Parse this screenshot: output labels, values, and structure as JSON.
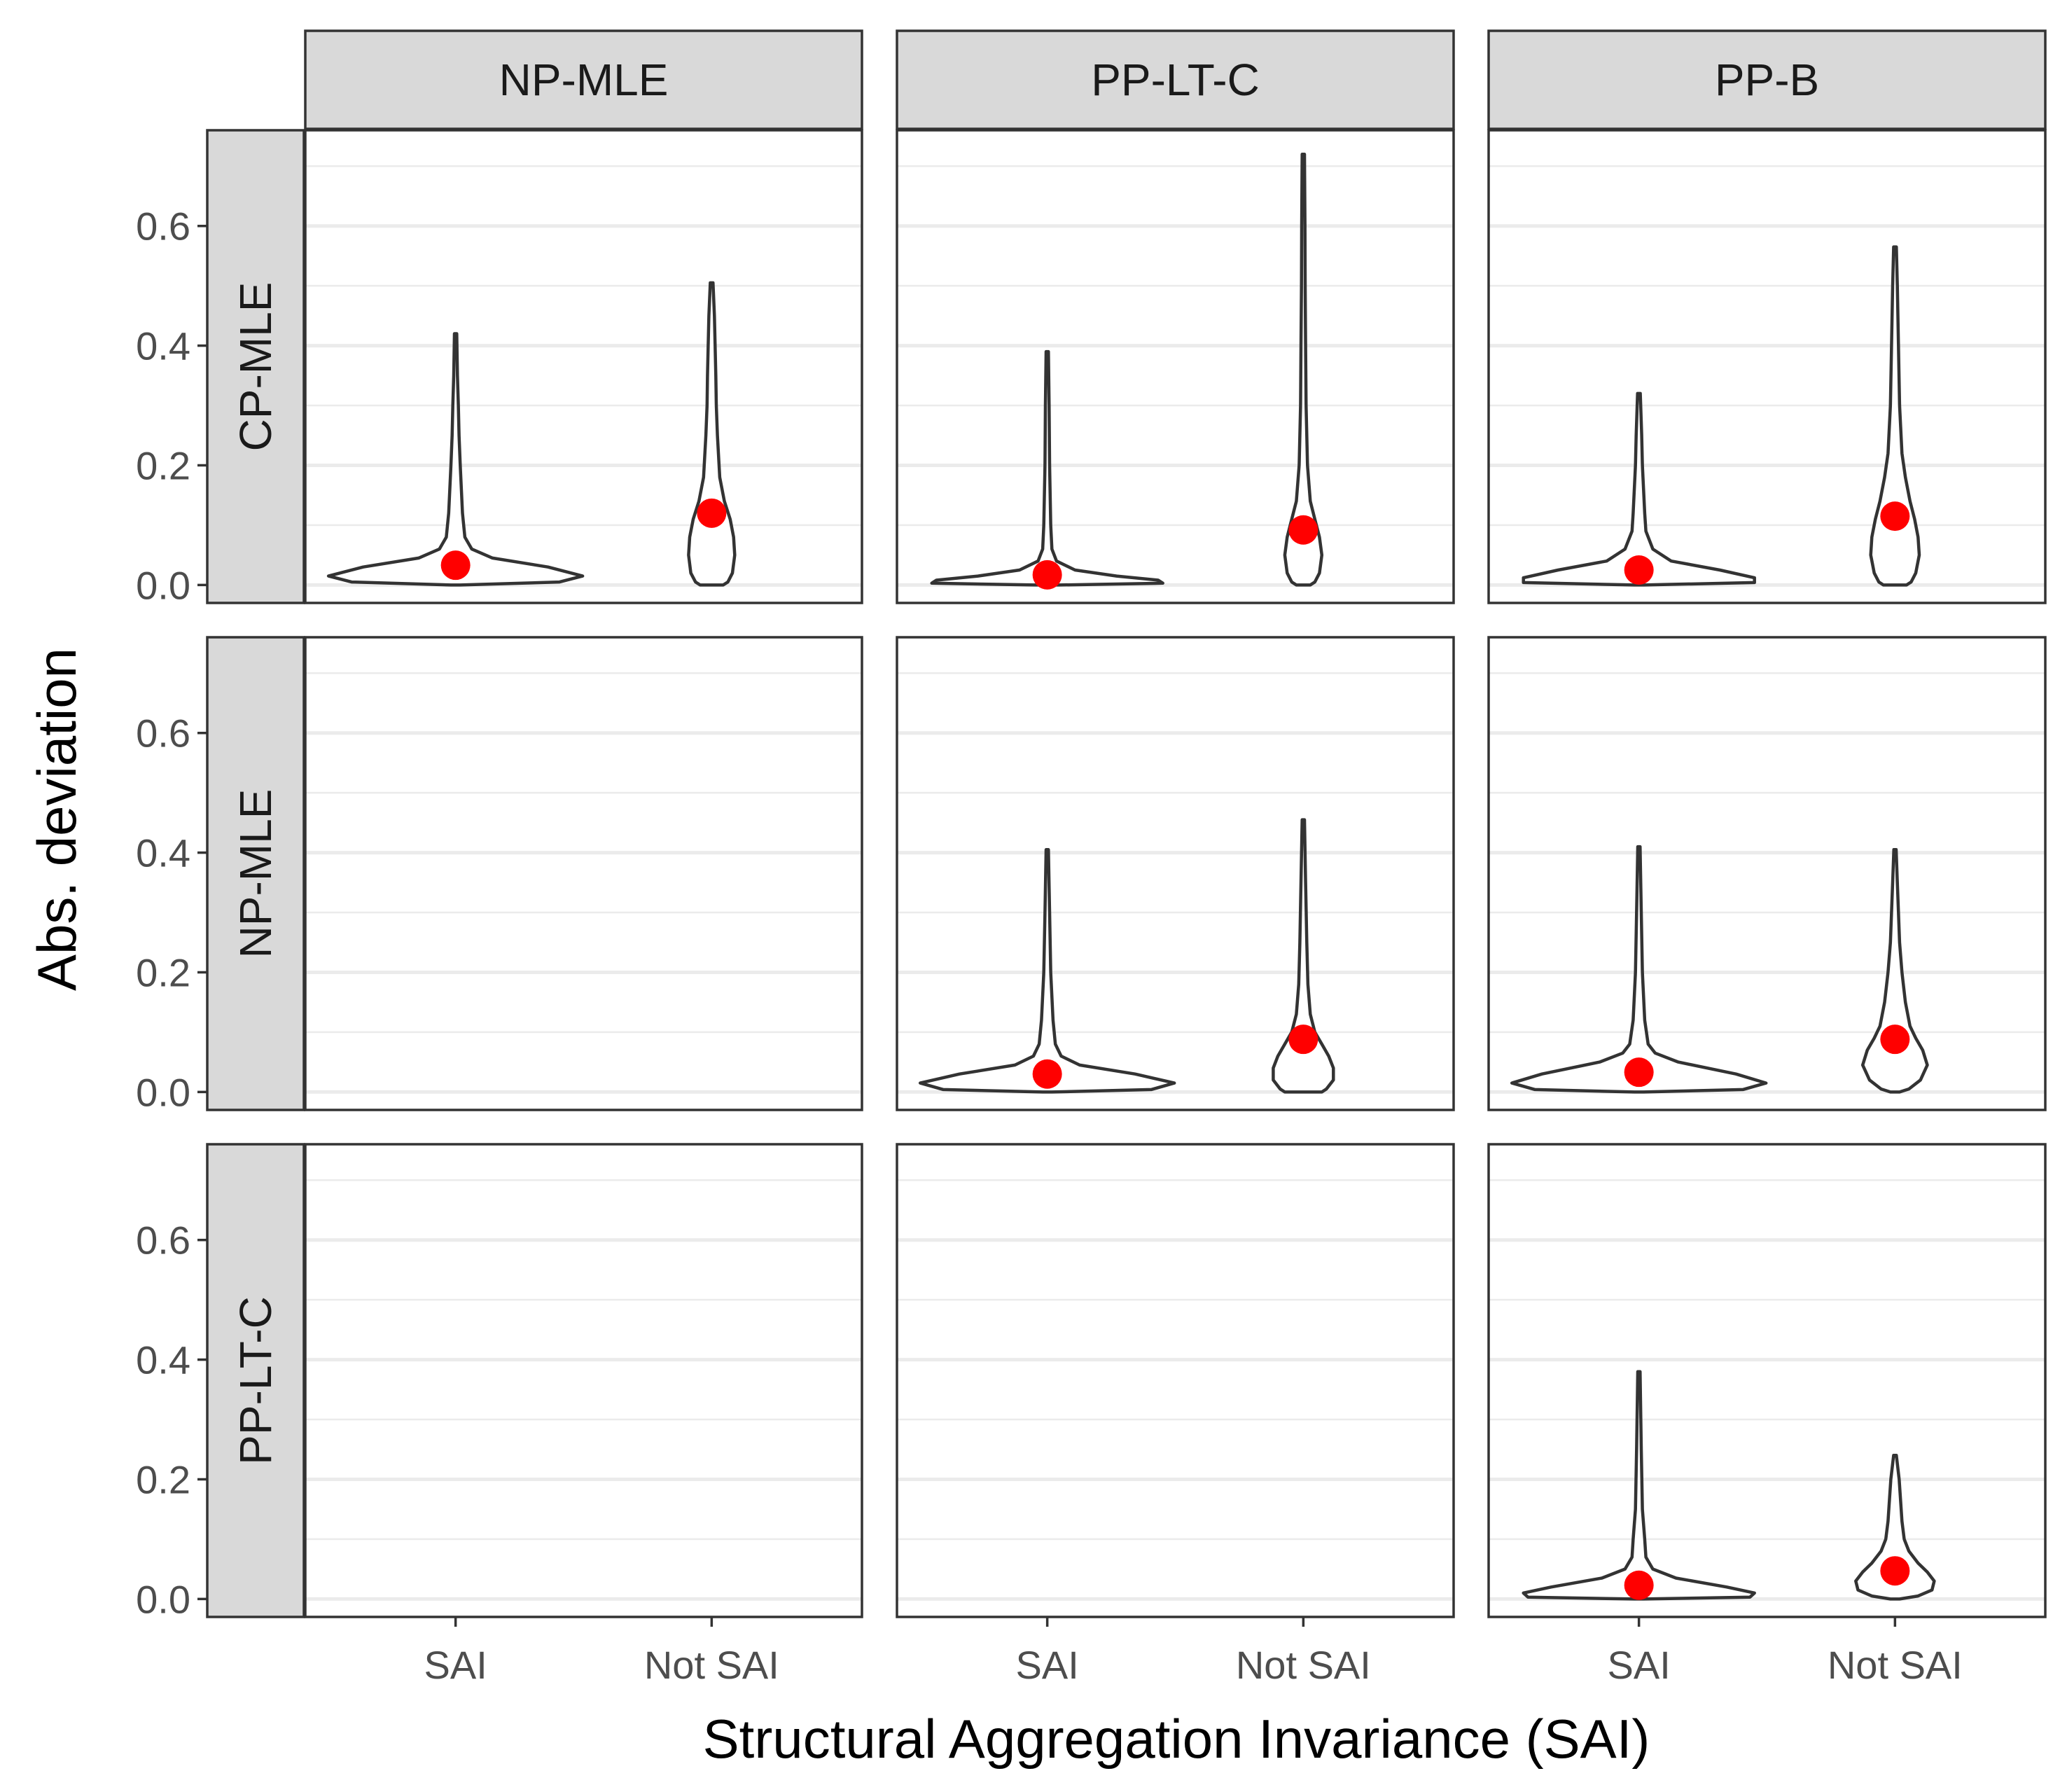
{
  "chart_data": {
    "type": "violin",
    "facet_columns": [
      "NP-MLE",
      "PP-LT-C",
      "PP-B"
    ],
    "facet_rows": [
      "CP-MLE",
      "NP-MLE",
      "PP-LT-C"
    ],
    "categories": [
      "SAI",
      "Not SAI"
    ],
    "xlabel": "Structural Aggregation Invariance (SAI)",
    "ylabel": "Abs. deviation",
    "ylim": [
      -0.03,
      0.76
    ],
    "yticks": [
      0.0,
      0.2,
      0.4,
      0.6
    ],
    "ytick_labels": [
      "0.0",
      "0.2",
      "0.4",
      "0.6"
    ],
    "grid": true,
    "mean_color": "#ff0000",
    "panels": [
      {
        "row": "CP-MLE",
        "col": "NP-MLE",
        "violins": [
          {
            "category": "SAI",
            "max": 0.42,
            "mean": 0.033,
            "profile": [
              [
                0.0,
                0.02
              ],
              [
                0.005,
                0.45
              ],
              [
                0.015,
                0.55
              ],
              [
                0.03,
                0.4
              ],
              [
                0.045,
                0.16
              ],
              [
                0.06,
                0.07
              ],
              [
                0.08,
                0.04
              ],
              [
                0.12,
                0.03
              ],
              [
                0.16,
                0.025
              ],
              [
                0.2,
                0.02
              ],
              [
                0.25,
                0.015
              ],
              [
                0.3,
                0.012
              ],
              [
                0.35,
                0.008
              ],
              [
                0.42,
                0.005
              ]
            ]
          },
          {
            "category": "Not SAI",
            "max": 0.505,
            "mean": 0.12,
            "profile": [
              [
                0.0,
                0.05
              ],
              [
                0.005,
                0.07
              ],
              [
                0.02,
                0.09
              ],
              [
                0.05,
                0.1
              ],
              [
                0.08,
                0.095
              ],
              [
                0.11,
                0.08
              ],
              [
                0.14,
                0.055
              ],
              [
                0.18,
                0.035
              ],
              [
                0.25,
                0.025
              ],
              [
                0.3,
                0.02
              ],
              [
                0.35,
                0.018
              ],
              [
                0.4,
                0.015
              ],
              [
                0.45,
                0.012
              ],
              [
                0.505,
                0.006
              ]
            ]
          }
        ]
      },
      {
        "row": "CP-MLE",
        "col": "PP-LT-C",
        "violins": [
          {
            "category": "SAI",
            "max": 0.39,
            "mean": 0.017,
            "profile": [
              [
                0.0,
                0.05
              ],
              [
                0.003,
                0.5
              ],
              [
                0.008,
                0.48
              ],
              [
                0.015,
                0.3
              ],
              [
                0.025,
                0.12
              ],
              [
                0.04,
                0.04
              ],
              [
                0.06,
                0.02
              ],
              [
                0.1,
                0.015
              ],
              [
                0.2,
                0.01
              ],
              [
                0.3,
                0.008
              ],
              [
                0.39,
                0.005
              ]
            ]
          },
          {
            "category": "Not SAI",
            "max": 0.72,
            "mean": 0.092,
            "profile": [
              [
                0.0,
                0.03
              ],
              [
                0.005,
                0.05
              ],
              [
                0.02,
                0.07
              ],
              [
                0.05,
                0.08
              ],
              [
                0.08,
                0.07
              ],
              [
                0.11,
                0.05
              ],
              [
                0.14,
                0.03
              ],
              [
                0.2,
                0.018
              ],
              [
                0.3,
                0.012
              ],
              [
                0.4,
                0.01
              ],
              [
                0.5,
                0.008
              ],
              [
                0.6,
                0.007
              ],
              [
                0.72,
                0.005
              ]
            ]
          }
        ]
      },
      {
        "row": "CP-MLE",
        "col": "PP-B",
        "violins": [
          {
            "category": "SAI",
            "max": 0.32,
            "mean": 0.025,
            "profile": [
              [
                0.0,
                0.02
              ],
              [
                0.004,
                0.5
              ],
              [
                0.012,
                0.5
              ],
              [
                0.025,
                0.35
              ],
              [
                0.04,
                0.14
              ],
              [
                0.06,
                0.06
              ],
              [
                0.09,
                0.03
              ],
              [
                0.12,
                0.025
              ],
              [
                0.2,
                0.015
              ],
              [
                0.25,
                0.012
              ],
              [
                0.32,
                0.006
              ]
            ]
          },
          {
            "category": "Not SAI",
            "max": 0.565,
            "mean": 0.115,
            "profile": [
              [
                0.0,
                0.05
              ],
              [
                0.005,
                0.07
              ],
              [
                0.02,
                0.09
              ],
              [
                0.05,
                0.105
              ],
              [
                0.08,
                0.1
              ],
              [
                0.11,
                0.085
              ],
              [
                0.14,
                0.065
              ],
              [
                0.18,
                0.045
              ],
              [
                0.22,
                0.03
              ],
              [
                0.3,
                0.02
              ],
              [
                0.4,
                0.015
              ],
              [
                0.5,
                0.01
              ],
              [
                0.565,
                0.006
              ]
            ]
          }
        ]
      },
      {
        "row": "NP-MLE",
        "col": "NP-MLE",
        "violins": []
      },
      {
        "row": "NP-MLE",
        "col": "PP-LT-C",
        "violins": [
          {
            "category": "SAI",
            "max": 0.405,
            "mean": 0.03,
            "profile": [
              [
                0.0,
                0.02
              ],
              [
                0.004,
                0.45
              ],
              [
                0.015,
                0.55
              ],
              [
                0.03,
                0.38
              ],
              [
                0.045,
                0.14
              ],
              [
                0.06,
                0.06
              ],
              [
                0.08,
                0.035
              ],
              [
                0.12,
                0.025
              ],
              [
                0.2,
                0.015
              ],
              [
                0.3,
                0.01
              ],
              [
                0.405,
                0.005
              ]
            ]
          },
          {
            "category": "Not SAI",
            "max": 0.455,
            "mean": 0.088,
            "profile": [
              [
                0.0,
                0.08
              ],
              [
                0.005,
                0.1
              ],
              [
                0.02,
                0.13
              ],
              [
                0.04,
                0.13
              ],
              [
                0.06,
                0.11
              ],
              [
                0.08,
                0.08
              ],
              [
                0.1,
                0.05
              ],
              [
                0.13,
                0.03
              ],
              [
                0.18,
                0.02
              ],
              [
                0.25,
                0.015
              ],
              [
                0.35,
                0.01
              ],
              [
                0.455,
                0.005
              ]
            ]
          }
        ]
      },
      {
        "row": "NP-MLE",
        "col": "PP-B",
        "violins": [
          {
            "category": "SAI",
            "max": 0.41,
            "mean": 0.033,
            "profile": [
              [
                0.0,
                0.02
              ],
              [
                0.004,
                0.45
              ],
              [
                0.015,
                0.55
              ],
              [
                0.03,
                0.42
              ],
              [
                0.05,
                0.17
              ],
              [
                0.065,
                0.07
              ],
              [
                0.08,
                0.04
              ],
              [
                0.12,
                0.025
              ],
              [
                0.2,
                0.015
              ],
              [
                0.3,
                0.01
              ],
              [
                0.41,
                0.005
              ]
            ]
          },
          {
            "category": "Not SAI",
            "max": 0.405,
            "mean": 0.088,
            "profile": [
              [
                0.0,
                0.02
              ],
              [
                0.005,
                0.06
              ],
              [
                0.02,
                0.11
              ],
              [
                0.045,
                0.14
              ],
              [
                0.07,
                0.12
              ],
              [
                0.09,
                0.09
              ],
              [
                0.11,
                0.065
              ],
              [
                0.15,
                0.045
              ],
              [
                0.2,
                0.03
              ],
              [
                0.25,
                0.02
              ],
              [
                0.3,
                0.015
              ],
              [
                0.35,
                0.01
              ],
              [
                0.405,
                0.005
              ]
            ]
          }
        ]
      },
      {
        "row": "PP-LT-C",
        "col": "NP-MLE",
        "violins": []
      },
      {
        "row": "PP-LT-C",
        "col": "PP-LT-C",
        "violins": []
      },
      {
        "row": "PP-LT-C",
        "col": "PP-B",
        "violins": [
          {
            "category": "SAI",
            "max": 0.38,
            "mean": 0.023,
            "profile": [
              [
                0.0,
                0.02
              ],
              [
                0.003,
                0.48
              ],
              [
                0.01,
                0.5
              ],
              [
                0.02,
                0.38
              ],
              [
                0.035,
                0.16
              ],
              [
                0.05,
                0.06
              ],
              [
                0.07,
                0.03
              ],
              [
                0.1,
                0.025
              ],
              [
                0.15,
                0.015
              ],
              [
                0.25,
                0.01
              ],
              [
                0.38,
                0.005
              ]
            ]
          },
          {
            "category": "Not SAI",
            "max": 0.24,
            "mean": 0.047,
            "profile": [
              [
                0.0,
                0.02
              ],
              [
                0.005,
                0.1
              ],
              [
                0.015,
                0.16
              ],
              [
                0.03,
                0.17
              ],
              [
                0.045,
                0.14
              ],
              [
                0.06,
                0.1
              ],
              [
                0.08,
                0.06
              ],
              [
                0.1,
                0.04
              ],
              [
                0.13,
                0.03
              ],
              [
                0.16,
                0.025
              ],
              [
                0.2,
                0.018
              ],
              [
                0.24,
                0.006
              ]
            ]
          }
        ]
      }
    ]
  }
}
